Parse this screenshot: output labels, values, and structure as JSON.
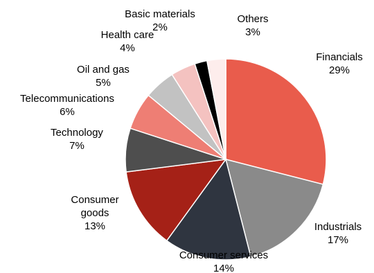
{
  "chart_data": {
    "type": "pie",
    "start": "12 o'clock",
    "direction": "clockwise",
    "legend": "none",
    "slices": [
      {
        "label": "Financials",
        "value": 29,
        "value_label": "29%",
        "color": "#E95C4C"
      },
      {
        "label": "Industrials",
        "value": 17,
        "value_label": "17%",
        "color": "#8A8A8A"
      },
      {
        "label": "Consumer services",
        "value": 14,
        "value_label": "14%",
        "color": "#2F3540"
      },
      {
        "label": "Consumer goods",
        "value": 13,
        "value_label": "13%",
        "color": "#A52117"
      },
      {
        "label": "Technology",
        "value": 7,
        "value_label": "7%",
        "color": "#4E4E4E"
      },
      {
        "label": "Telecommunications",
        "value": 6,
        "value_label": "6%",
        "color": "#EE7E74"
      },
      {
        "label": "Oil and gas",
        "value": 5,
        "value_label": "5%",
        "color": "#C2C2C2"
      },
      {
        "label": "Health care",
        "value": 4,
        "value_label": "4%",
        "color": "#F4C2C0"
      },
      {
        "label": "Basic materials",
        "value": 2,
        "value_label": "2%",
        "color": "#000000"
      },
      {
        "label": "Others",
        "value": 3,
        "value_label": "3%",
        "color": "#FDEDEC"
      }
    ]
  }
}
